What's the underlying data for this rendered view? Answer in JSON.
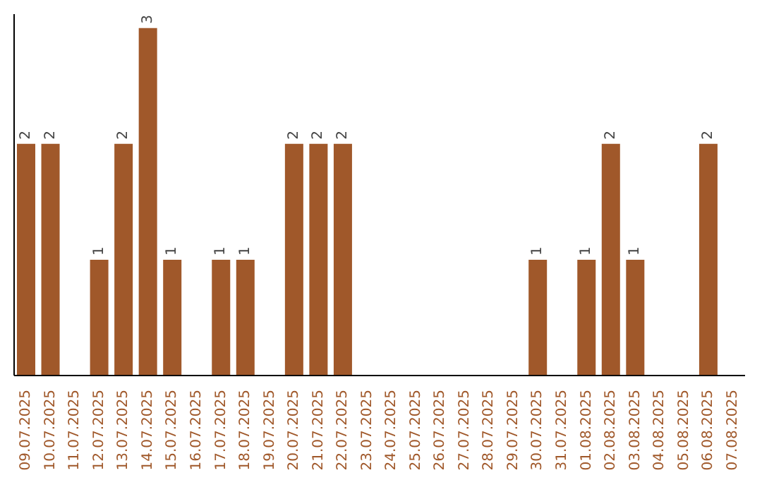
{
  "chart_data": {
    "type": "bar",
    "categories": [
      "09.07.2025",
      "10.07.2025",
      "11.07.2025",
      "12.07.2025",
      "13.07.2025",
      "14.07.2025",
      "15.07.2025",
      "16.07.2025",
      "17.07.2025",
      "18.07.2025",
      "19.07.2025",
      "20.07.2025",
      "21.07.2025",
      "22.07.2025",
      "23.07.2025",
      "24.07.2025",
      "25.07.2025",
      "26.07.2025",
      "27.07.2025",
      "28.07.2025",
      "29.07.2025",
      "30.07.2025",
      "31.07.2025",
      "01.08.2025",
      "02.08.2025",
      "03.08.2025",
      "04.08.2025",
      "05.08.2025",
      "06.08.2025",
      "07.08.2025"
    ],
    "values": [
      2,
      2,
      0,
      1,
      2,
      3,
      1,
      0,
      1,
      1,
      0,
      2,
      2,
      2,
      0,
      0,
      0,
      0,
      0,
      0,
      0,
      1,
      0,
      1,
      2,
      1,
      0,
      0,
      2,
      0
    ],
    "value_labels": [
      "2",
      "2",
      null,
      "1",
      "2",
      "3",
      "1",
      null,
      "1",
      "1",
      null,
      "2",
      "2",
      "2",
      null,
      null,
      null,
      null,
      null,
      null,
      null,
      "1",
      null,
      "1",
      "2",
      "1",
      null,
      null,
      "2",
      null
    ],
    "color": "#a0582a",
    "grid": false,
    "legend": false
  }
}
